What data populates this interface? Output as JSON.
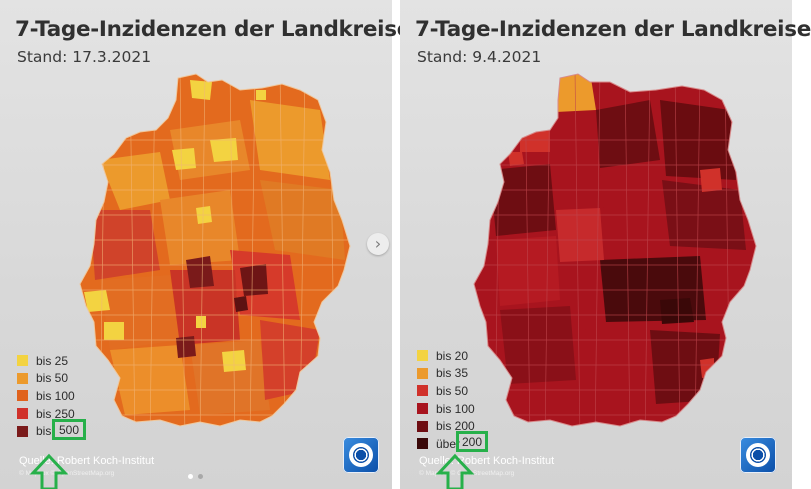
{
  "left": {
    "title": "7-Tage-Inzidenzen der Landkreise",
    "stand": "Stand: 17.3.2021",
    "legend": [
      {
        "label": "bis 25",
        "color": "#f3d341"
      },
      {
        "label": "bis 50",
        "color": "#ec9a2c"
      },
      {
        "label": "bis 100",
        "color": "#e0621c"
      },
      {
        "label": "bis 250",
        "color": "#d0312a"
      },
      {
        "label": "bis",
        "color": "#7a1a1a"
      }
    ],
    "highlight_value": "500",
    "source": "Quelle: Robert Koch-Institut",
    "source_sub": "© Mapbox © OpenStreetMap.org"
  },
  "right": {
    "title": "7-Tage-Inzidenzen der Landkreise",
    "stand": "Stand: 9.4.2021",
    "legend": [
      {
        "label": "bis 20",
        "color": "#f3d341"
      },
      {
        "label": "bis 35",
        "color": "#ec9a2c"
      },
      {
        "label": "bis 50",
        "color": "#d0312a"
      },
      {
        "label": "bis 100",
        "color": "#a8141e"
      },
      {
        "label": "bis 200",
        "color": "#6e0d12"
      },
      {
        "label": "über",
        "color": "#3a0808"
      }
    ],
    "highlight_value": "200",
    "source": "Quelle: Robert Koch-Institut",
    "source_sub": "© Mapbox © OpenStreetMap.org"
  },
  "ui": {
    "next_icon": "chevron-right-icon",
    "next_glyph": "›",
    "highlight_color": "#27b04a",
    "carousel_pages": 2,
    "carousel_active": 1
  }
}
